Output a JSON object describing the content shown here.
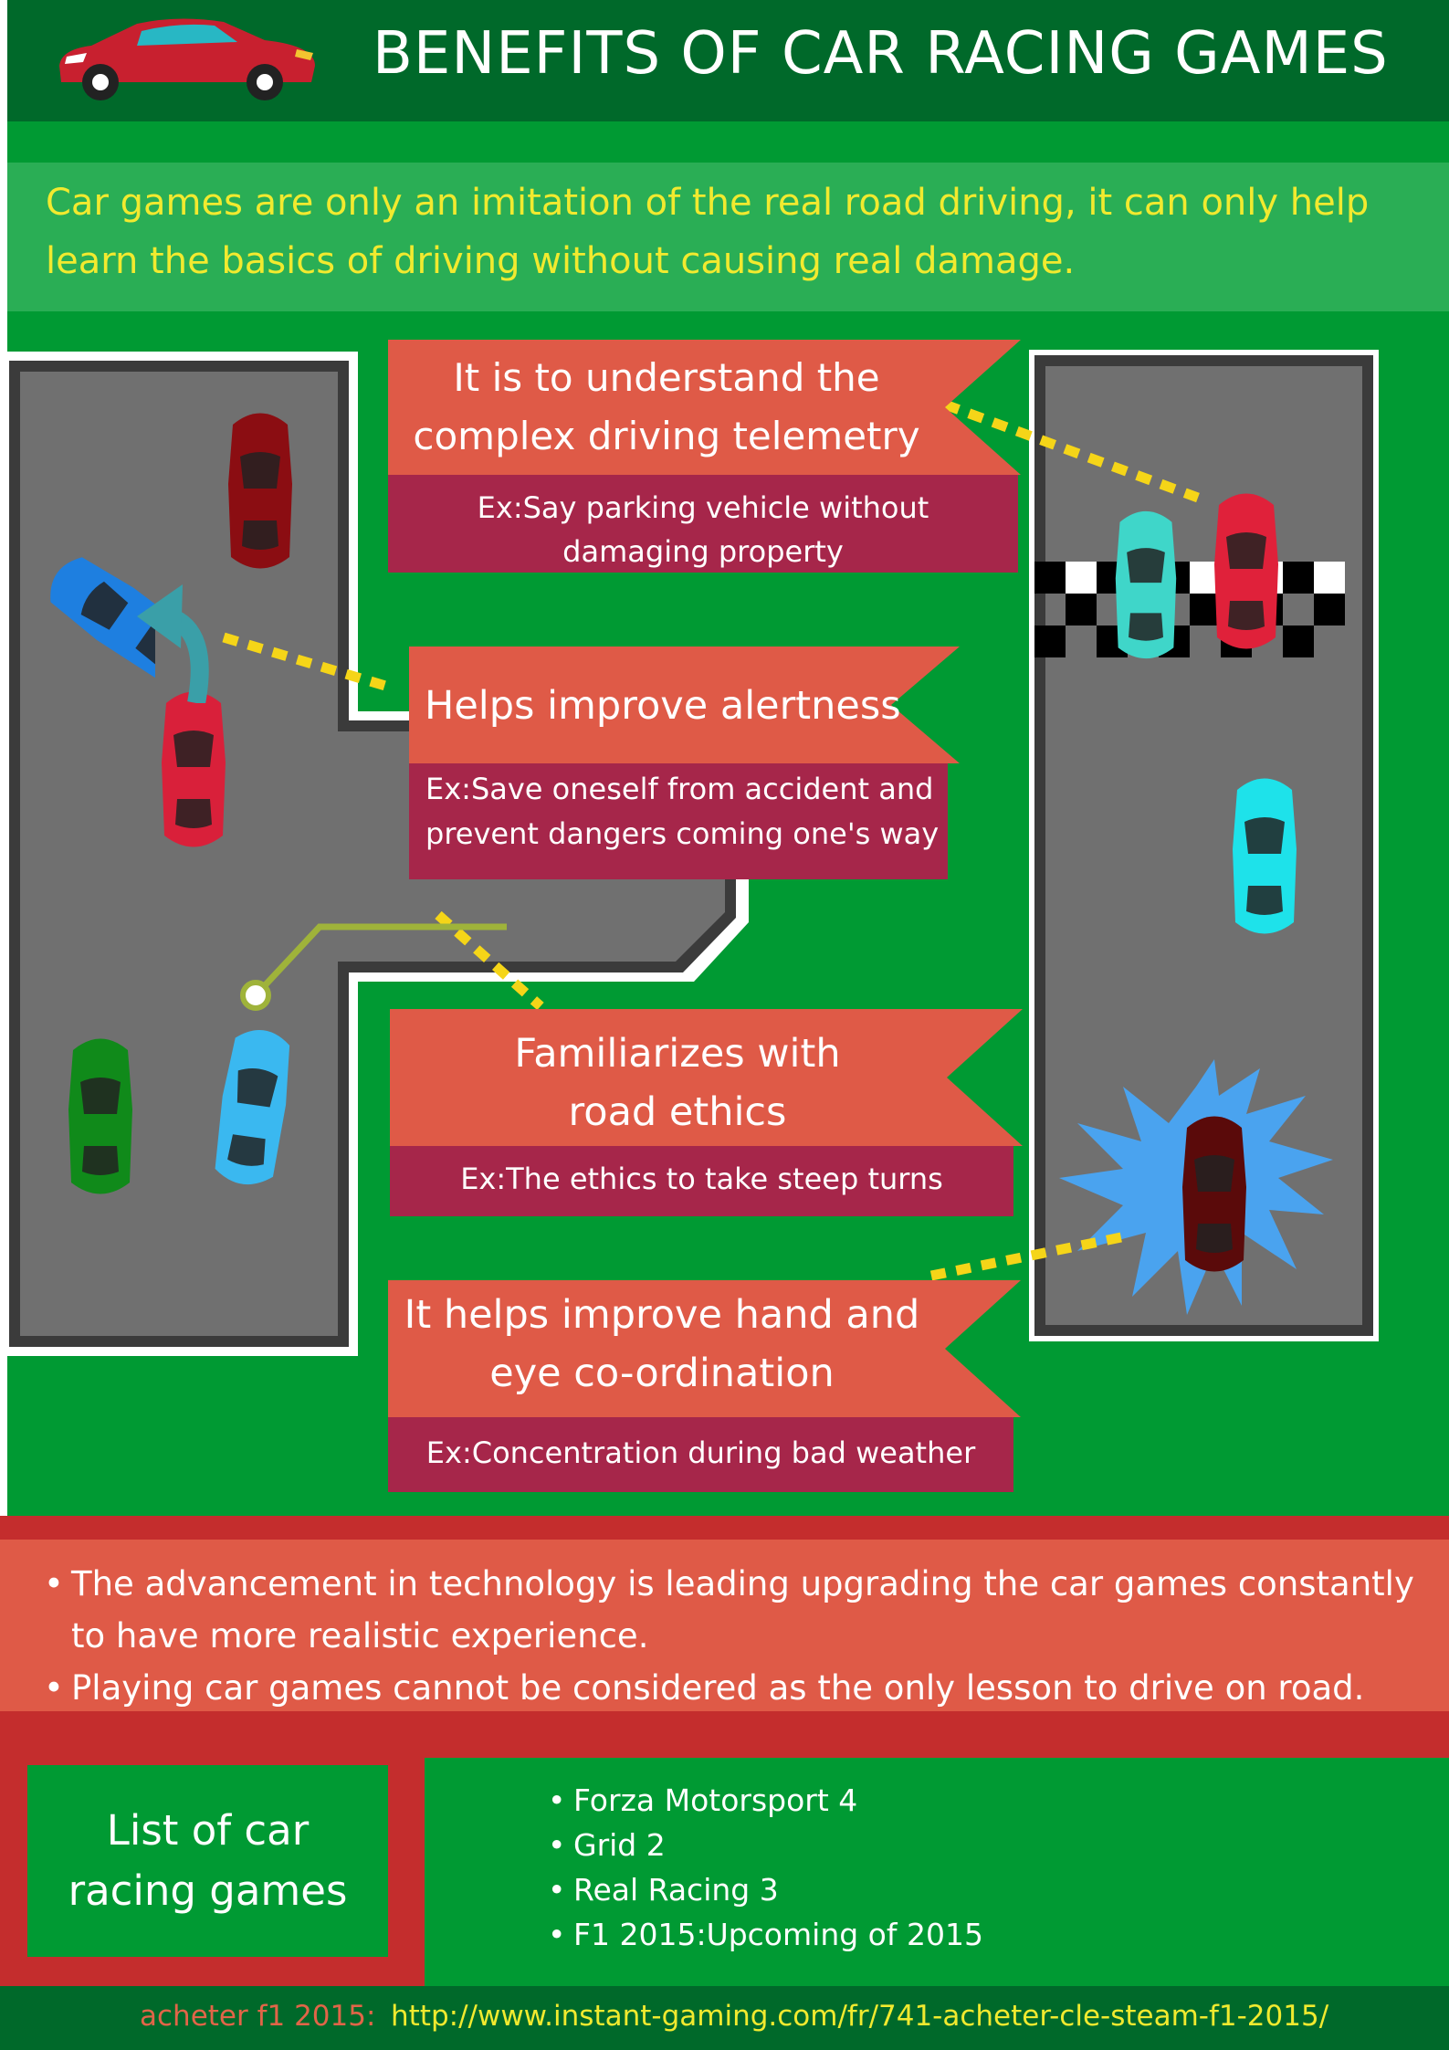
{
  "header": {
    "title": "BENEFITS OF CAR RACING GAMES",
    "logo_icon": "red-car-icon"
  },
  "intro": {
    "text": "Car games are only an imitation of the real road driving, it can only help learn the basics of driving without causing real damage."
  },
  "benefits": [
    {
      "title_line1": "It is to understand the",
      "title_line2": "complex driving telemetry",
      "example_line1": "Ex:Say parking vehicle without",
      "example_line2": "damaging property"
    },
    {
      "title_line1": "Helps improve alertness",
      "title_line2": "",
      "example_line1": "Ex:Save oneself from accident and",
      "example_line2": "prevent dangers coming one's way"
    },
    {
      "title_line1": "Familiarizes with",
      "title_line2": "road ethics",
      "example_line1": "Ex:The ethics to take steep turns",
      "example_line2": ""
    },
    {
      "title_line1": "It helps improve hand and",
      "title_line2": "eye co-ordination",
      "example_line1": "Ex:Concentration during bad weather",
      "example_line2": ""
    }
  ],
  "notes": [
    "The advancement in technology is leading upgrading the car games constantly to have more realistic experience.",
    "Playing car games cannot be considered as the only lesson to drive on road."
  ],
  "games_list": {
    "heading_line1": "List of car",
    "heading_line2": "racing games",
    "items": [
      "Forza Motorsport 4",
      "Grid 2",
      "Real Racing 3",
      "F1 2015:Upcoming of 2015"
    ]
  },
  "footer": {
    "label": "acheter f1 2015:",
    "url": "http://www.instant-gaming.com/fr/741-acheter-cle-steam-f1-2015/"
  },
  "colors": {
    "background_green": "#009a33",
    "header_green": "#00692a",
    "ribbon_orange": "#df5a47",
    "ribbon_crimson": "#a6264a",
    "accent_yellow": "#f1ea2f",
    "band_red": "#c42d2d"
  }
}
